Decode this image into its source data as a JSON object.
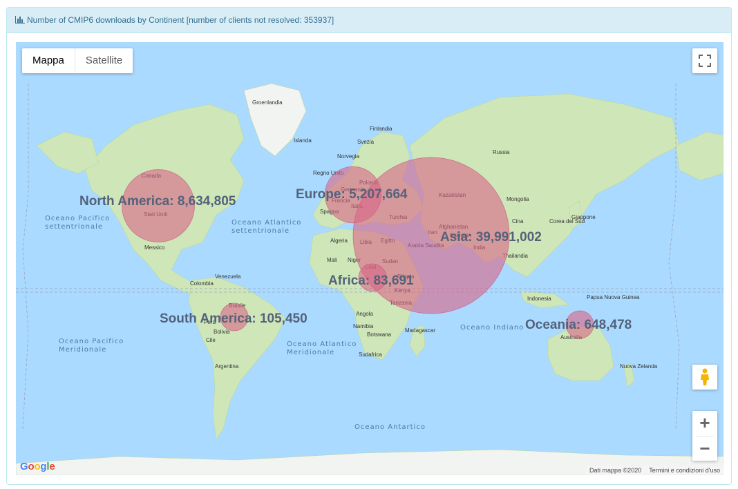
{
  "header": {
    "title": "Number of CMIP6 downloads by Continent [number of clients not resolved: 353937]"
  },
  "map_controls": {
    "map_type_options": [
      "Mappa",
      "Satellite"
    ],
    "selected_map_type": "Mappa",
    "zoom_in": "+",
    "zoom_out": "−"
  },
  "branding": {
    "google": "Google",
    "attribution": "Dati mappa ©2020",
    "terms": "Termini e condizioni d'uso"
  },
  "colors": {
    "ocean": "#aadaff",
    "land": "#cfe7b8",
    "bubble": "#d96487",
    "label": "#53627a"
  },
  "continents": [
    {
      "name": "North America",
      "downloads": 8634805,
      "label": "North America: 8,634,805"
    },
    {
      "name": "Europe",
      "downloads": 5207664,
      "label": "Europe: 5,207,664"
    },
    {
      "name": "Asia",
      "downloads": 39991002,
      "label": "Asia: 39,991,002"
    },
    {
      "name": "Africa",
      "downloads": 83691,
      "label": "Africa: 83,691"
    },
    {
      "name": "South America",
      "downloads": 105450,
      "label": "South America: 105,450"
    },
    {
      "name": "Oceania",
      "downloads": 648478,
      "label": "Oceania: 648,478"
    }
  ],
  "place_labels": [
    "Groenlandia",
    "Islanda",
    "Finlandia",
    "Svezia",
    "Norvegia",
    "Russia",
    "Regno Unito",
    "Germania",
    "Polonia",
    "Francia",
    "Italia",
    "Spagna",
    "Turchia",
    "Kazakistan",
    "Mongolia",
    "Cina",
    "Corea del Sud",
    "Giappone",
    "Afghanistan",
    "Iran",
    "Pakistan",
    "Arabia Saudita",
    "India",
    "Thailandia",
    "Indonesia",
    "Algeria",
    "Libia",
    "Egitto",
    "Mali",
    "Niger",
    "Ciad",
    "Sudan",
    "Etiopia",
    "Kenya",
    "Tanzania",
    "Angola",
    "Namibia",
    "Botswana",
    "Sudafrica",
    "Madagascar",
    "Canada",
    "Stati Uniti",
    "Messico",
    "Venezuela",
    "Colombia",
    "Perù",
    "Brasile",
    "Bolivia",
    "Argentina",
    "Cile",
    "Australia",
    "Papua Nuova Guinea",
    "Nuova Zelanda"
  ],
  "ocean_labels": [
    "Oceano Pacifico settentrionale",
    "Oceano Atlantico settentrionale",
    "Oceano Pacifico Meridionale",
    "Oceano Atlantico Meridionale",
    "Oceano Indiano",
    "Oceano Antartico"
  ]
}
